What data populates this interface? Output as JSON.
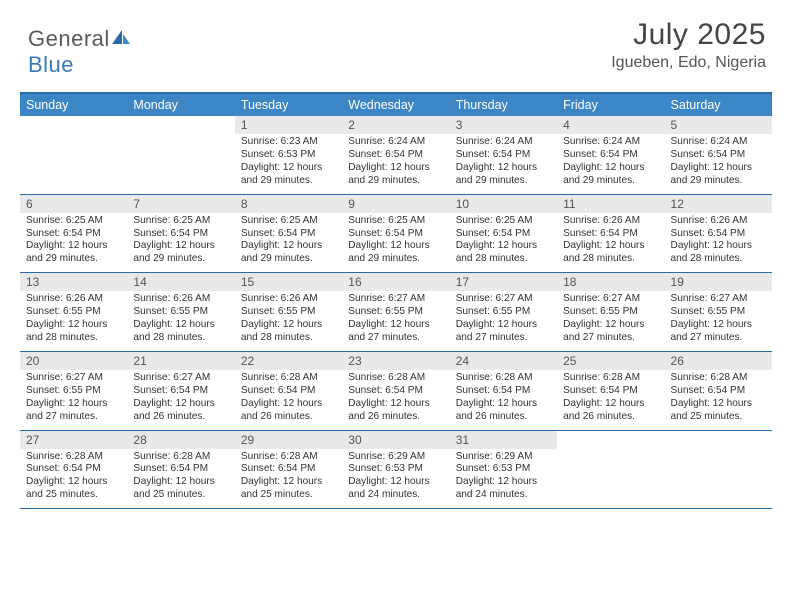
{
  "brand": {
    "part1": "General",
    "part2": "Blue"
  },
  "title": "July 2025",
  "location": "Igueben, Edo, Nigeria",
  "colors": {
    "header_bg": "#3d86c6",
    "border": "#2a6aa8",
    "daynum_bg": "#e9e9e9",
    "body_bg": "#ffffff"
  },
  "day_headers": [
    "Sunday",
    "Monday",
    "Tuesday",
    "Wednesday",
    "Thursday",
    "Friday",
    "Saturday"
  ],
  "weeks": [
    [
      {
        "n": "",
        "sr": "",
        "ss": "",
        "dl": ""
      },
      {
        "n": "",
        "sr": "",
        "ss": "",
        "dl": ""
      },
      {
        "n": "1",
        "sr": "Sunrise: 6:23 AM",
        "ss": "Sunset: 6:53 PM",
        "dl": "Daylight: 12 hours and 29 minutes."
      },
      {
        "n": "2",
        "sr": "Sunrise: 6:24 AM",
        "ss": "Sunset: 6:54 PM",
        "dl": "Daylight: 12 hours and 29 minutes."
      },
      {
        "n": "3",
        "sr": "Sunrise: 6:24 AM",
        "ss": "Sunset: 6:54 PM",
        "dl": "Daylight: 12 hours and 29 minutes."
      },
      {
        "n": "4",
        "sr": "Sunrise: 6:24 AM",
        "ss": "Sunset: 6:54 PM",
        "dl": "Daylight: 12 hours and 29 minutes."
      },
      {
        "n": "5",
        "sr": "Sunrise: 6:24 AM",
        "ss": "Sunset: 6:54 PM",
        "dl": "Daylight: 12 hours and 29 minutes."
      }
    ],
    [
      {
        "n": "6",
        "sr": "Sunrise: 6:25 AM",
        "ss": "Sunset: 6:54 PM",
        "dl": "Daylight: 12 hours and 29 minutes."
      },
      {
        "n": "7",
        "sr": "Sunrise: 6:25 AM",
        "ss": "Sunset: 6:54 PM",
        "dl": "Daylight: 12 hours and 29 minutes."
      },
      {
        "n": "8",
        "sr": "Sunrise: 6:25 AM",
        "ss": "Sunset: 6:54 PM",
        "dl": "Daylight: 12 hours and 29 minutes."
      },
      {
        "n": "9",
        "sr": "Sunrise: 6:25 AM",
        "ss": "Sunset: 6:54 PM",
        "dl": "Daylight: 12 hours and 29 minutes."
      },
      {
        "n": "10",
        "sr": "Sunrise: 6:25 AM",
        "ss": "Sunset: 6:54 PM",
        "dl": "Daylight: 12 hours and 28 minutes."
      },
      {
        "n": "11",
        "sr": "Sunrise: 6:26 AM",
        "ss": "Sunset: 6:54 PM",
        "dl": "Daylight: 12 hours and 28 minutes."
      },
      {
        "n": "12",
        "sr": "Sunrise: 6:26 AM",
        "ss": "Sunset: 6:54 PM",
        "dl": "Daylight: 12 hours and 28 minutes."
      }
    ],
    [
      {
        "n": "13",
        "sr": "Sunrise: 6:26 AM",
        "ss": "Sunset: 6:55 PM",
        "dl": "Daylight: 12 hours and 28 minutes."
      },
      {
        "n": "14",
        "sr": "Sunrise: 6:26 AM",
        "ss": "Sunset: 6:55 PM",
        "dl": "Daylight: 12 hours and 28 minutes."
      },
      {
        "n": "15",
        "sr": "Sunrise: 6:26 AM",
        "ss": "Sunset: 6:55 PM",
        "dl": "Daylight: 12 hours and 28 minutes."
      },
      {
        "n": "16",
        "sr": "Sunrise: 6:27 AM",
        "ss": "Sunset: 6:55 PM",
        "dl": "Daylight: 12 hours and 27 minutes."
      },
      {
        "n": "17",
        "sr": "Sunrise: 6:27 AM",
        "ss": "Sunset: 6:55 PM",
        "dl": "Daylight: 12 hours and 27 minutes."
      },
      {
        "n": "18",
        "sr": "Sunrise: 6:27 AM",
        "ss": "Sunset: 6:55 PM",
        "dl": "Daylight: 12 hours and 27 minutes."
      },
      {
        "n": "19",
        "sr": "Sunrise: 6:27 AM",
        "ss": "Sunset: 6:55 PM",
        "dl": "Daylight: 12 hours and 27 minutes."
      }
    ],
    [
      {
        "n": "20",
        "sr": "Sunrise: 6:27 AM",
        "ss": "Sunset: 6:55 PM",
        "dl": "Daylight: 12 hours and 27 minutes."
      },
      {
        "n": "21",
        "sr": "Sunrise: 6:27 AM",
        "ss": "Sunset: 6:54 PM",
        "dl": "Daylight: 12 hours and 26 minutes."
      },
      {
        "n": "22",
        "sr": "Sunrise: 6:28 AM",
        "ss": "Sunset: 6:54 PM",
        "dl": "Daylight: 12 hours and 26 minutes."
      },
      {
        "n": "23",
        "sr": "Sunrise: 6:28 AM",
        "ss": "Sunset: 6:54 PM",
        "dl": "Daylight: 12 hours and 26 minutes."
      },
      {
        "n": "24",
        "sr": "Sunrise: 6:28 AM",
        "ss": "Sunset: 6:54 PM",
        "dl": "Daylight: 12 hours and 26 minutes."
      },
      {
        "n": "25",
        "sr": "Sunrise: 6:28 AM",
        "ss": "Sunset: 6:54 PM",
        "dl": "Daylight: 12 hours and 26 minutes."
      },
      {
        "n": "26",
        "sr": "Sunrise: 6:28 AM",
        "ss": "Sunset: 6:54 PM",
        "dl": "Daylight: 12 hours and 25 minutes."
      }
    ],
    [
      {
        "n": "27",
        "sr": "Sunrise: 6:28 AM",
        "ss": "Sunset: 6:54 PM",
        "dl": "Daylight: 12 hours and 25 minutes."
      },
      {
        "n": "28",
        "sr": "Sunrise: 6:28 AM",
        "ss": "Sunset: 6:54 PM",
        "dl": "Daylight: 12 hours and 25 minutes."
      },
      {
        "n": "29",
        "sr": "Sunrise: 6:28 AM",
        "ss": "Sunset: 6:54 PM",
        "dl": "Daylight: 12 hours and 25 minutes."
      },
      {
        "n": "30",
        "sr": "Sunrise: 6:29 AM",
        "ss": "Sunset: 6:53 PM",
        "dl": "Daylight: 12 hours and 24 minutes."
      },
      {
        "n": "31",
        "sr": "Sunrise: 6:29 AM",
        "ss": "Sunset: 6:53 PM",
        "dl": "Daylight: 12 hours and 24 minutes."
      },
      {
        "n": "",
        "sr": "",
        "ss": "",
        "dl": ""
      },
      {
        "n": "",
        "sr": "",
        "ss": "",
        "dl": ""
      }
    ]
  ]
}
